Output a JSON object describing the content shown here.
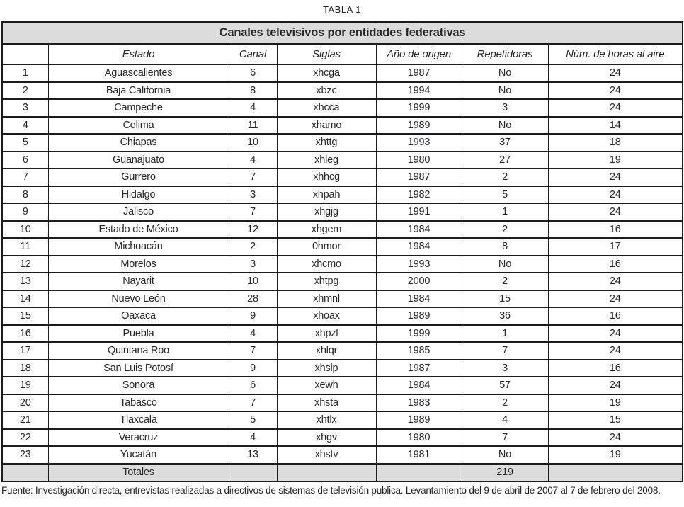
{
  "page": {
    "table_label": "TABLA 1",
    "source_note": "Fuente: Investigación directa, entrevistas realizadas a directivos de sistemas de televisión publica. Levantamiento del 9 de abril de 2007 al 7 de febrero del 2008."
  },
  "table": {
    "title": "Canales televisivos por entidades federativas",
    "columns": [
      "",
      "Estado",
      "Canal",
      "Siglas",
      "Año de origen",
      "Repetidoras",
      "Núm. de horas al aire"
    ],
    "rows": [
      [
        "1",
        "Aguascalientes",
        "6",
        "xhcga",
        "1987",
        "No",
        "24"
      ],
      [
        "2",
        "Baja California",
        "8",
        "xbzc",
        "1994",
        "No",
        "24"
      ],
      [
        "3",
        "Campeche",
        "4",
        "xhcca",
        "1999",
        "3",
        "24"
      ],
      [
        "4",
        "Colima",
        "11",
        "xhamo",
        "1989",
        "No",
        "14"
      ],
      [
        "5",
        "Chiapas",
        "10",
        "xhttg",
        "1993",
        "37",
        "18"
      ],
      [
        "6",
        "Guanajuato",
        "4",
        "xhleg",
        "1980",
        "27",
        "19"
      ],
      [
        "7",
        "Gurrero",
        "7",
        "xhhcg",
        "1987",
        "2",
        "24"
      ],
      [
        "8",
        "Hidalgo",
        "3",
        "xhpah",
        "1982",
        "5",
        "24"
      ],
      [
        "9",
        "Jalisco",
        "7",
        "xhgjg",
        "1991",
        "1",
        "24"
      ],
      [
        "10",
        "Estado de México",
        "12",
        "xhgem",
        "1984",
        "2",
        "16"
      ],
      [
        "11",
        "Michoacán",
        "2",
        "0hmor",
        "1984",
        "8",
        "17"
      ],
      [
        "12",
        "Morelos",
        "3",
        "xhcmo",
        "1993",
        "No",
        "16"
      ],
      [
        "13",
        "Nayarit",
        "10",
        "xhtpg",
        "2000",
        "2",
        "24"
      ],
      [
        "14",
        "Nuevo León",
        "28",
        "xhmnl",
        "1984",
        "15",
        "24"
      ],
      [
        "15",
        "Oaxaca",
        "9",
        "xhoax",
        "1989",
        "36",
        "16"
      ],
      [
        "16",
        "Puebla",
        "4",
        "xhpzl",
        "1999",
        "1",
        "24"
      ],
      [
        "17",
        "Quintana Roo",
        "7",
        "xhlqr",
        "1985",
        "7",
        "24"
      ],
      [
        "18",
        "San Luis Potosí",
        "9",
        "xhslp",
        "1987",
        "3",
        "16"
      ],
      [
        "19",
        "Sonora",
        "6",
        "xewh",
        "1984",
        "57",
        "24"
      ],
      [
        "20",
        "Tabasco",
        "7",
        "xhsta",
        "1983",
        "2",
        "19"
      ],
      [
        "21",
        "Tlaxcala",
        "5",
        "xhtlx",
        "1989",
        "4",
        "15"
      ],
      [
        "22",
        "Veracruz",
        "4",
        "xhgv",
        "1980",
        "7",
        "24"
      ],
      [
        "23",
        "Yucatán",
        "13",
        "xhstv",
        "1981",
        "No",
        "19"
      ]
    ],
    "totals": {
      "label": "Totales",
      "repetidoras_total": "219"
    }
  },
  "colors": {
    "header_bg": "#dcdcdc",
    "border": "#1c1c1f",
    "text": "#26262b"
  }
}
